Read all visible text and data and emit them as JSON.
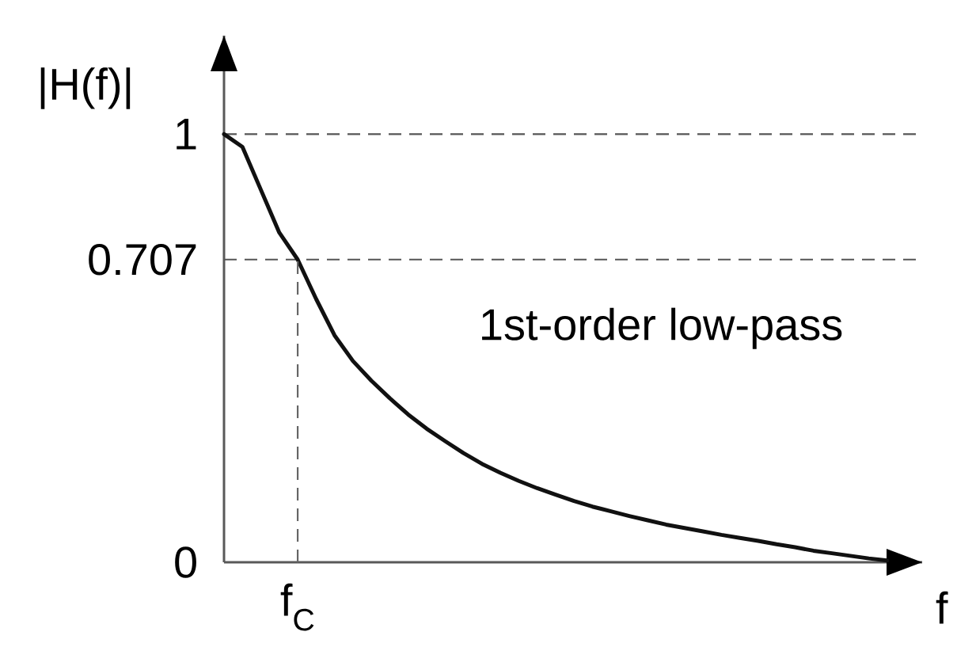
{
  "chart_data": {
    "type": "line",
    "xlabel": "f",
    "ylabel": "|H(f)|",
    "categories": [
      null,
      null,
      null,
      null,
      null,
      null,
      null,
      null,
      null,
      null,
      null,
      null,
      null,
      null,
      null,
      null,
      null,
      null,
      null,
      null,
      null,
      null,
      null,
      null,
      null,
      null,
      null,
      null,
      null,
      null,
      null,
      null,
      null,
      null,
      null,
      null,
      null
    ],
    "values": [
      1.0,
      0.97,
      0.87,
      0.77,
      0.707,
      0.615,
      0.53,
      0.47,
      0.424,
      0.383,
      0.345,
      0.312,
      0.283,
      0.255,
      0.23,
      0.209,
      0.19,
      0.173,
      0.158,
      0.143,
      0.13,
      0.119,
      0.108,
      0.098,
      0.088,
      0.08,
      0.072,
      0.064,
      0.057,
      0.05,
      0.042,
      0.035,
      0.027,
      0.021,
      0.015,
      0.009,
      0.004
    ],
    "color": "#111111",
    "ylim": [
      0,
      1.23
    ],
    "yticks": [
      {
        "value": 0,
        "label": "0"
      },
      {
        "value": 0.707,
        "label": "0.707"
      },
      {
        "value": 1,
        "label": "1"
      }
    ],
    "ref_lines": [
      {
        "axis": "y",
        "value": 1,
        "line_style": "dashed",
        "color": "#555555"
      },
      {
        "axis": "y",
        "value": 0.707,
        "line_style": "dashed",
        "color": "#555555"
      }
    ],
    "annotations": [
      {
        "text": "f$_{C}$",
        "y": 0.707
      },
      "1st-order low-pass"
    ]
  }
}
